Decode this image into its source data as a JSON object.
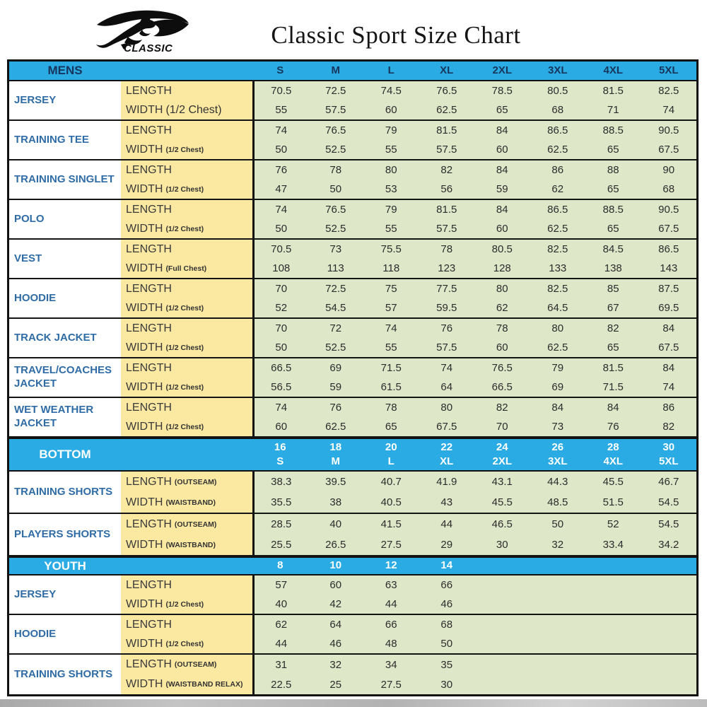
{
  "logo": {
    "brand": "CLASSIC",
    "icon": "kangaroo-swoosh-logo"
  },
  "colors": {
    "header_blue": "#2aabe3",
    "label_yellow": "#fbe9a2",
    "data_green": "#dfe7c9",
    "item_text_blue": "#2f6ca5",
    "header_navy": "#17365d"
  },
  "chart_data": {
    "type": "table",
    "title": "Classic Sport Size Chart",
    "sections": [
      {
        "id": "mens",
        "header": {
          "label": "MENS",
          "text_style": "navy",
          "sizes": [
            "S",
            "M",
            "L",
            "XL",
            "2XL",
            "3XL",
            "4XL",
            "5XL"
          ]
        },
        "rows": [
          {
            "name": "JERSEY",
            "measurements": [
              {
                "label": "LENGTH",
                "note": "",
                "values": [
                  "70.5",
                  "72.5",
                  "74.5",
                  "76.5",
                  "78.5",
                  "80.5",
                  "81.5",
                  "82.5"
                ]
              },
              {
                "label": "WIDTH",
                "note": "(1/2 Chest)",
                "note_large": true,
                "values": [
                  "55",
                  "57.5",
                  "60",
                  "62.5",
                  "65",
                  "68",
                  "71",
                  "74"
                ]
              }
            ]
          },
          {
            "name": "TRAINING TEE",
            "measurements": [
              {
                "label": "LENGTH",
                "note": "",
                "values": [
                  "74",
                  "76.5",
                  "79",
                  "81.5",
                  "84",
                  "86.5",
                  "88.5",
                  "90.5"
                ]
              },
              {
                "label": "WIDTH",
                "note": "(1/2 Chest)",
                "values": [
                  "50",
                  "52.5",
                  "55",
                  "57.5",
                  "60",
                  "62.5",
                  "65",
                  "67.5"
                ]
              }
            ]
          },
          {
            "name": "TRAINING SINGLET",
            "measurements": [
              {
                "label": "LENGTH",
                "note": "",
                "values": [
                  "76",
                  "78",
                  "80",
                  "82",
                  "84",
                  "86",
                  "88",
                  "90"
                ]
              },
              {
                "label": "WIDTH",
                "note": "(1/2 Chest)",
                "values": [
                  "47",
                  "50",
                  "53",
                  "56",
                  "59",
                  "62",
                  "65",
                  "68"
                ]
              }
            ]
          },
          {
            "name": "POLO",
            "measurements": [
              {
                "label": "LENGTH",
                "note": "",
                "values": [
                  "74",
                  "76.5",
                  "79",
                  "81.5",
                  "84",
                  "86.5",
                  "88.5",
                  "90.5"
                ]
              },
              {
                "label": "WIDTH",
                "note": "(1/2 Chest)",
                "values": [
                  "50",
                  "52.5",
                  "55",
                  "57.5",
                  "60",
                  "62.5",
                  "65",
                  "67.5"
                ]
              }
            ]
          },
          {
            "name": "VEST",
            "measurements": [
              {
                "label": "LENGTH",
                "note": "",
                "values": [
                  "70.5",
                  "73",
                  "75.5",
                  "78",
                  "80.5",
                  "82.5",
                  "84.5",
                  "86.5"
                ]
              },
              {
                "label": "WIDTH",
                "note": "(Full Chest)",
                "values": [
                  "108",
                  "113",
                  "118",
                  "123",
                  "128",
                  "133",
                  "138",
                  "143"
                ]
              }
            ]
          },
          {
            "name": "HOODIE",
            "measurements": [
              {
                "label": "LENGTH",
                "note": "",
                "values": [
                  "70",
                  "72.5",
                  "75",
                  "77.5",
                  "80",
                  "82.5",
                  "85",
                  "87.5"
                ]
              },
              {
                "label": "WIDTH",
                "note": "(1/2 Chest)",
                "values": [
                  "52",
                  "54.5",
                  "57",
                  "59.5",
                  "62",
                  "64.5",
                  "67",
                  "69.5"
                ]
              }
            ]
          },
          {
            "name": "TRACK JACKET",
            "measurements": [
              {
                "label": "LENGTH",
                "note": "",
                "values": [
                  "70",
                  "72",
                  "74",
                  "76",
                  "78",
                  "80",
                  "82",
                  "84"
                ]
              },
              {
                "label": "WIDTH",
                "note": "(1/2 Chest)",
                "values": [
                  "50",
                  "52.5",
                  "55",
                  "57.5",
                  "60",
                  "62.5",
                  "65",
                  "67.5"
                ]
              }
            ]
          },
          {
            "name": "TRAVEL/COACHES JACKET",
            "measurements": [
              {
                "label": "LENGTH",
                "note": "",
                "values": [
                  "66.5",
                  "69",
                  "71.5",
                  "74",
                  "76.5",
                  "79",
                  "81.5",
                  "84"
                ]
              },
              {
                "label": "WIDTH",
                "note": "(1/2 Chest)",
                "values": [
                  "56.5",
                  "59",
                  "61.5",
                  "64",
                  "66.5",
                  "69",
                  "71.5",
                  "74"
                ]
              }
            ]
          },
          {
            "name": "WET WEATHER JACKET",
            "measurements": [
              {
                "label": "LENGTH",
                "note": "",
                "values": [
                  "74",
                  "76",
                  "78",
                  "80",
                  "82",
                  "84",
                  "84",
                  "86"
                ]
              },
              {
                "label": "WIDTH",
                "note": "(1/2 Chest)",
                "values": [
                  "60",
                  "62.5",
                  "65",
                  "67.5",
                  "70",
                  "73",
                  "76",
                  "82"
                ]
              }
            ]
          }
        ]
      },
      {
        "id": "bottom",
        "header": {
          "label": "BOTTOM",
          "text_style": "white",
          "sizes_top": [
            "16",
            "18",
            "20",
            "22",
            "24",
            "26",
            "28",
            "30"
          ],
          "sizes_bottom": [
            "S",
            "M",
            "L",
            "XL",
            "2XL",
            "3XL",
            "4XL",
            "5XL"
          ]
        },
        "rows": [
          {
            "name": "TRAINING SHORTS",
            "measurements": [
              {
                "label": "LENGTH",
                "note": "(OUTSEAM)",
                "values": [
                  "38.3",
                  "39.5",
                  "40.7",
                  "41.9",
                  "43.1",
                  "44.3",
                  "45.5",
                  "46.7"
                ]
              },
              {
                "label": "WIDTH",
                "note": "(WAISTBAND)",
                "values": [
                  "35.5",
                  "38",
                  "40.5",
                  "43",
                  "45.5",
                  "48.5",
                  "51.5",
                  "54.5"
                ]
              }
            ]
          },
          {
            "name": "PLAYERS SHORTS",
            "measurements": [
              {
                "label": "LENGTH",
                "note": "(OUTSEAM)",
                "values": [
                  "28.5",
                  "40",
                  "41.5",
                  "44",
                  "46.5",
                  "50",
                  "52",
                  "54.5"
                ]
              },
              {
                "label": "WIDTH",
                "note": "(WAISTBAND)",
                "values": [
                  "25.5",
                  "26.5",
                  "27.5",
                  "29",
                  "30",
                  "32",
                  "33.4",
                  "34.2"
                ]
              }
            ]
          }
        ]
      },
      {
        "id": "youth",
        "header": {
          "label": "YOUTH",
          "text_style": "white",
          "sizes": [
            "8",
            "10",
            "12",
            "14",
            "",
            "",
            "",
            ""
          ]
        },
        "rows": [
          {
            "name": "JERSEY",
            "measurements": [
              {
                "label": "LENGTH",
                "note": "",
                "values": [
                  "57",
                  "60",
                  "63",
                  "66",
                  "",
                  "",
                  "",
                  ""
                ]
              },
              {
                "label": "WIDTH",
                "note": "(1/2 Chest)",
                "values": [
                  "40",
                  "42",
                  "44",
                  "46",
                  "",
                  "",
                  "",
                  ""
                ]
              }
            ]
          },
          {
            "name": "HOODIE",
            "measurements": [
              {
                "label": "LENGTH",
                "note": "",
                "values": [
                  "62",
                  "64",
                  "66",
                  "68",
                  "",
                  "",
                  "",
                  ""
                ]
              },
              {
                "label": "WIDTH",
                "note": "(1/2 Chest)",
                "values": [
                  "44",
                  "46",
                  "48",
                  "50",
                  "",
                  "",
                  "",
                  ""
                ]
              }
            ]
          },
          {
            "name": "TRAINING SHORTS",
            "measurements": [
              {
                "label": "LENGTH",
                "note": "(OUTSEAM)",
                "values": [
                  "31",
                  "32",
                  "34",
                  "35",
                  "",
                  "",
                  "",
                  ""
                ]
              },
              {
                "label": "WIDTH",
                "note": "(WAISTBAND RELAX)",
                "values": [
                  "22.5",
                  "25",
                  "27.5",
                  "30",
                  "",
                  "",
                  "",
                  ""
                ]
              }
            ]
          }
        ]
      }
    ]
  }
}
